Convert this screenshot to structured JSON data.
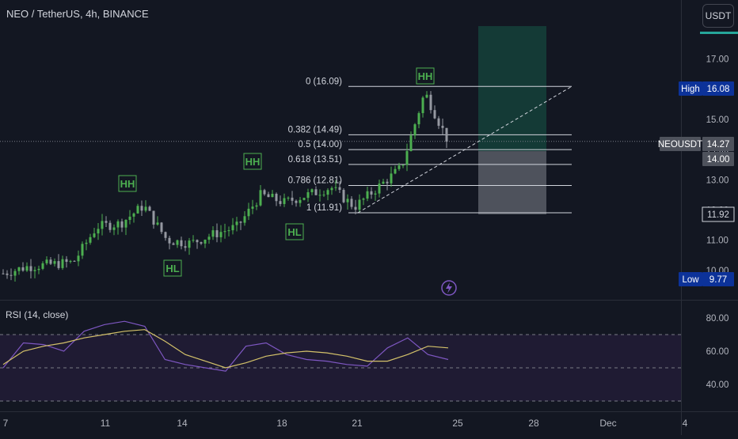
{
  "header": {
    "symbol_title": "NEO / TetherUS, 4h, BINANCE",
    "currency_button": "USDT"
  },
  "price_axis": {
    "ticks": [
      "17.00",
      "16.00",
      "15.00",
      "14.00",
      "13.00",
      "12.00",
      "11.00",
      "10.00"
    ]
  },
  "badges": {
    "high_label": "High",
    "high_value": "16.08",
    "symbol_label": "NEOUSDT",
    "last_price": "14.27",
    "fib_price": "14.00",
    "low_ref": "11.92",
    "low_label": "Low",
    "low_value": "9.77"
  },
  "fib_levels": [
    {
      "label": "0 (16.09)",
      "value": 16.09
    },
    {
      "label": "0.382 (14.49)",
      "value": 14.49
    },
    {
      "label": "0.5 (14.00)",
      "value": 14.0
    },
    {
      "label": "0.618 (13.51)",
      "value": 13.51
    },
    {
      "label": "0.786 (12.81)",
      "value": 12.81
    },
    {
      "label": "1 (11.91)",
      "value": 11.91
    }
  ],
  "annotations": [
    {
      "text": "HH"
    },
    {
      "text": "HL"
    },
    {
      "text": "HH"
    },
    {
      "text": "HL"
    },
    {
      "text": "HH"
    }
  ],
  "rsi": {
    "title": "RSI (14, close)",
    "ticks": [
      "80.00",
      "60.00",
      "40.00"
    ],
    "upper_band": 70,
    "middle_band": 50,
    "lower_band": 30
  },
  "time_axis": {
    "ticks": [
      "7",
      "11",
      "14",
      "18",
      "21",
      "25",
      "28",
      "Dec",
      "4"
    ]
  },
  "colors": {
    "background": "#131722",
    "up": "#4caf50",
    "down": "#9598a1",
    "rsi_line": "#7e57c2",
    "rsi_ma": "#d4c26a",
    "annotation": "#4caf50",
    "profit_zone": "#143a36",
    "stop_zone": "#4e525c",
    "badge_blue": "#0c3299"
  },
  "chart_data": [
    {
      "type": "candlestick",
      "symbol": "NEO / TetherUS",
      "timeframe": "4h",
      "exchange": "BINANCE",
      "y_unit": "USDT",
      "ylim": [
        9.7,
        17.7
      ],
      "x_ticks": [
        "7",
        "11",
        "14",
        "18",
        "21",
        "25",
        "28",
        "Dec",
        "4"
      ],
      "close_path": [
        {
          "x": "Nov 6",
          "y": 9.9
        },
        {
          "x": "Nov 7",
          "y": 10.12
        },
        {
          "x": "Nov 8",
          "y": 10.2
        },
        {
          "x": "Nov 9",
          "y": 10.27
        },
        {
          "x": "Nov 10",
          "y": 11.45
        },
        {
          "x": "Nov 11",
          "y": 11.55
        },
        {
          "x": "Nov 12",
          "y": 12.15
        },
        {
          "x": "Nov 13",
          "y": 11.0
        },
        {
          "x": "Nov 14",
          "y": 10.9
        },
        {
          "x": "Nov 15",
          "y": 11.2
        },
        {
          "x": "Nov 16",
          "y": 11.45
        },
        {
          "x": "Nov 17",
          "y": 12.5
        },
        {
          "x": "Nov 18",
          "y": 12.25
        },
        {
          "x": "Nov 19",
          "y": 12.5
        },
        {
          "x": "Nov 20",
          "y": 12.75
        },
        {
          "x": "Nov 21",
          "y": 12.1
        },
        {
          "x": "Nov 22",
          "y": 12.75
        },
        {
          "x": "Nov 23",
          "y": 13.4
        },
        {
          "x": "Nov 24",
          "y": 15.9
        },
        {
          "x": "Nov 24 12:00",
          "y": 14.27
        }
      ],
      "high": 16.08,
      "low": 9.77,
      "last": 14.27
    },
    {
      "type": "line",
      "title": "RSI (14, close)",
      "ylim": [
        30,
        90
      ],
      "series": [
        {
          "values": [
            50,
            65,
            64,
            60,
            72,
            76,
            78,
            75,
            55,
            52,
            50,
            48,
            63,
            65,
            58,
            55,
            54,
            52,
            51,
            62,
            68,
            58,
            55
          ]
        },
        {
          "values": [
            52,
            60,
            63,
            65,
            68,
            70,
            72,
            73,
            66,
            58,
            54,
            50,
            53,
            57,
            59,
            60,
            59,
            57,
            54,
            54,
            58,
            63,
            62
          ]
        }
      ]
    }
  ]
}
